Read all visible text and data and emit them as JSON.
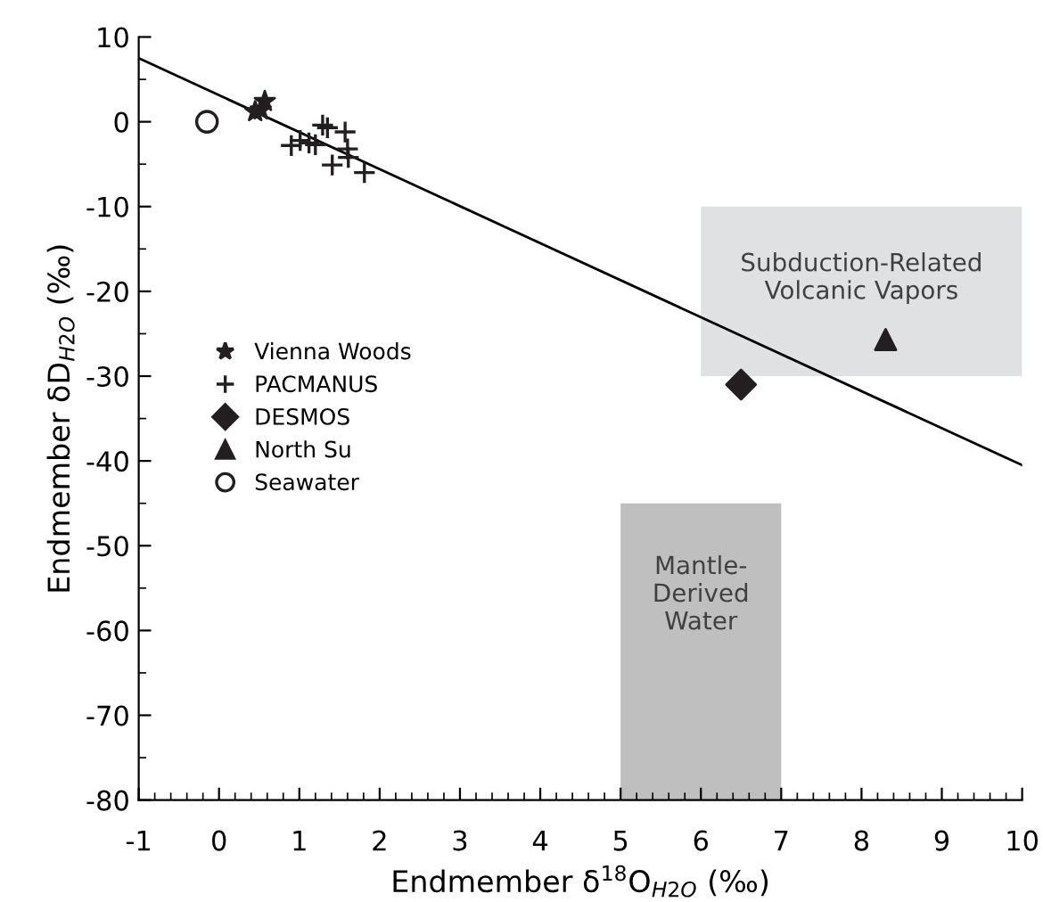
{
  "chart_data": {
    "type": "scatter",
    "xlabel": "Endmember δ$^{18}$O$_{H2O}$ (‰)",
    "ylabel": "Endmember δD$_{H2O}$ (‰)",
    "xlim": [
      -1,
      10
    ],
    "xticks": [
      -1,
      0,
      1,
      2,
      3,
      4,
      5,
      6,
      7,
      8,
      9,
      10
    ],
    "ylim": [
      -80,
      10
    ],
    "yticks": [
      -80,
      -70,
      -60,
      -50,
      -40,
      -30,
      -20,
      -10,
      0,
      10
    ],
    "grid": false,
    "legend": "center left",
    "series": [
      {
        "type": "line",
        "color": "#e0e1e2",
        "marker": "none",
        "x": [
          6,
          10
        ],
        "values": [
          null,
          null
        ],
        "lower": [
          -30,
          -30
        ],
        "upper": [
          -10,
          -10
        ]
      },
      {
        "type": "line",
        "color": "#bfbfc0",
        "marker": "none",
        "x": [
          5,
          7
        ],
        "values": [
          null,
          null
        ],
        "lower": [
          -80,
          -80
        ],
        "upper": [
          -45,
          -45
        ]
      },
      {
        "type": "line",
        "color": "#000000",
        "x": [
          -1,
          10
        ],
        "values": [
          7.5,
          -40.5
        ],
        "marker": "none"
      },
      {
        "name": "Vienna Woods",
        "color": "#231f20",
        "marker": "star",
        "x": [
          0.45,
          0.52,
          0.57
        ],
        "values": [
          1.2,
          1.4,
          2.4
        ]
      },
      {
        "name": "PACMANUS",
        "color": "#231f20",
        "marker": "cross",
        "x": [
          0.9,
          1.01,
          1.12,
          1.2,
          1.29,
          1.35,
          1.41,
          1.57,
          1.6,
          1.61,
          1.81
        ],
        "values": [
          -2.8,
          -2.2,
          -2.5,
          -2.7,
          -0.4,
          -0.7,
          -5.1,
          -1.2,
          -3.2,
          -4.2,
          -6.0
        ]
      },
      {
        "name": "DESMOS",
        "color": "#231f20",
        "marker": "diamond",
        "x": [
          6.5
        ],
        "values": [
          -31
        ]
      },
      {
        "name": "North Su",
        "color": "#231f20",
        "marker": "triangle",
        "x": [
          8.3
        ],
        "values": [
          -25.7
        ]
      },
      {
        "name": "Seawater",
        "color": "#231f20",
        "marker": "circle",
        "x": [
          -0.15
        ],
        "values": [
          0
        ]
      }
    ],
    "annotations": [
      "Subduction-Related\nVolcanic Vapors",
      "Mantle-\nDerived\nWater"
    ]
  }
}
